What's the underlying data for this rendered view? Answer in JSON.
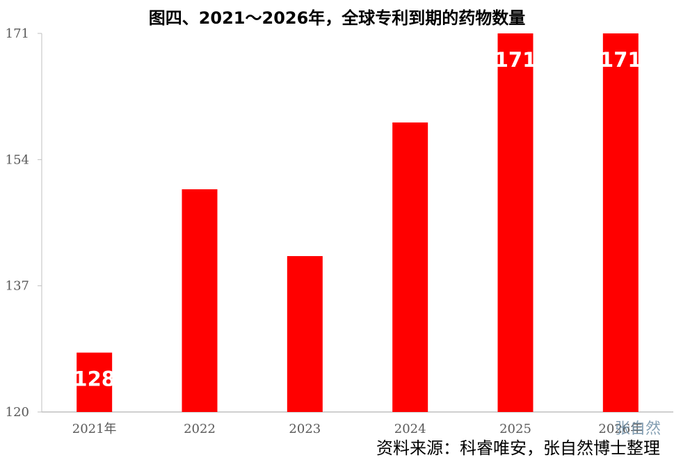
{
  "chart_data": {
    "type": "bar",
    "title": "图四、2021～2026年，全球专利到期的药物数量",
    "categories": [
      "2021年",
      "2022",
      "2023",
      "2024",
      "2025",
      "2026年"
    ],
    "values": [
      128,
      150,
      141,
      159,
      171,
      171
    ],
    "data_labels": [
      "128",
      "",
      "",
      "",
      "171",
      "171"
    ],
    "y_ticks": [
      120,
      137,
      154,
      171
    ],
    "ylim": [
      120,
      171
    ],
    "xlabel": "",
    "ylabel": "",
    "grid": false,
    "bar_color": "#ff0000"
  },
  "source_note": "资料来源：科睿唯安，张自然博士整理",
  "watermark": "张自然"
}
